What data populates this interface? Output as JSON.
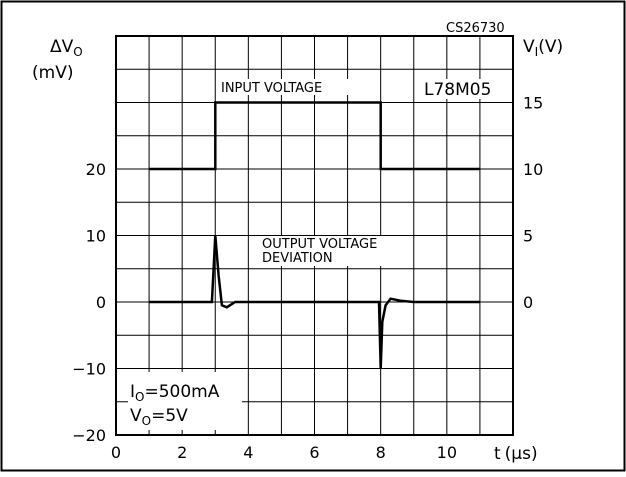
{
  "chart_data": {
    "type": "line",
    "code": "CS26730",
    "device_label": "L78M05",
    "left_axis": {
      "label_main": "ΔV",
      "label_sub": "O",
      "unit": "(mV)",
      "range": [
        -20,
        40
      ],
      "ticks": [
        {
          "value": 20,
          "label": "20"
        },
        {
          "value": 10,
          "label": "10"
        },
        {
          "value": 0,
          "label": "0"
        },
        {
          "value": -10,
          "label": "−10"
        },
        {
          "value": -20,
          "label": "−20"
        }
      ]
    },
    "right_axis": {
      "label_main": "V",
      "label_sub": "I",
      "unit": "(V)",
      "ticks": [
        {
          "value": 15,
          "label": "15"
        },
        {
          "value": 10,
          "label": "10"
        },
        {
          "value": 5,
          "label": "5"
        },
        {
          "value": 0,
          "label": "0"
        }
      ]
    },
    "x_axis": {
      "label": "t",
      "unit": "(μs)",
      "range": [
        0,
        12
      ],
      "ticks": [
        {
          "value": 0,
          "label": "0"
        },
        {
          "value": 2,
          "label": "2"
        },
        {
          "value": 4,
          "label": "4"
        },
        {
          "value": 6,
          "label": "6"
        },
        {
          "value": 8,
          "label": "8"
        },
        {
          "value": 10,
          "label": "10"
        }
      ]
    },
    "grid": true,
    "series": [
      {
        "name": "INPUT VOLTAGE",
        "axis": "right",
        "points": [
          [
            1,
            10
          ],
          [
            3,
            10
          ],
          [
            3,
            15
          ],
          [
            8,
            15
          ],
          [
            8,
            10
          ],
          [
            11,
            10
          ]
        ]
      },
      {
        "name": "OUTPUT VOLTAGE DEVIATION",
        "axis": "left",
        "points": [
          [
            1,
            0
          ],
          [
            2.9,
            0
          ],
          [
            3.0,
            10
          ],
          [
            3.1,
            4
          ],
          [
            3.2,
            -0.5
          ],
          [
            3.35,
            -0.8
          ],
          [
            3.6,
            0
          ],
          [
            7.95,
            0
          ],
          [
            8.0,
            -10
          ],
          [
            8.05,
            -3
          ],
          [
            8.15,
            -0.5
          ],
          [
            8.3,
            0.5
          ],
          [
            8.6,
            0.2
          ],
          [
            9.0,
            0
          ],
          [
            11,
            0
          ]
        ]
      }
    ],
    "annotations": {
      "input_label": "INPUT VOLTAGE",
      "output_label_line1": "OUTPUT VOLTAGE",
      "output_label_line2": "DEVIATION",
      "condition1_main": "I",
      "condition1_sub": "O",
      "condition1_value": "=500mA",
      "condition2_main": "V",
      "condition2_sub": "O",
      "condition2_value": "=5V"
    }
  }
}
